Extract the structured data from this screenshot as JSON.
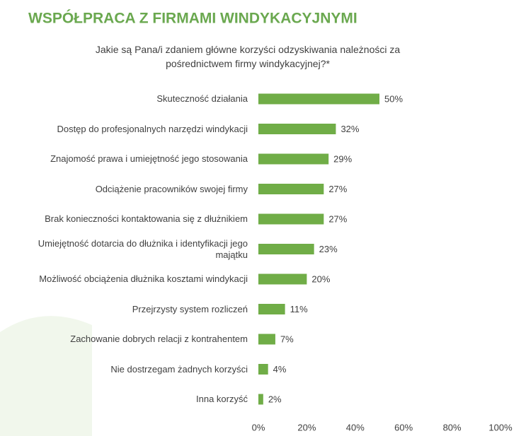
{
  "chart_data": {
    "type": "bar",
    "orientation": "horizontal",
    "title": "WSPÓŁPRACA Z FIRMAMI WINDYKACYJNYMI",
    "subtitle": "Jakie są Pana/i zdaniem główne korzyści odzyskiwania należności za pośrednictwem firmy windykacyjnej?*",
    "categories": [
      "Skuteczność działania",
      "Dostęp do profesjonalnych narzędzi windykacji",
      "Znajomość prawa i umiejętność jego stosowania",
      "Odciążenie pracowników swojej firmy",
      "Brak konieczności kontaktowania się z dłużnikiem",
      "Umiejętność dotarcia do dłużnika i identyfikacji jego majątku",
      "Możliwość obciążenia dłużnika kosztami windykacji",
      "Przejrzysty system rozliczeń",
      "Zachowanie dobrych relacji z kontrahentem",
      "Nie dostrzegam żadnych korzyści",
      "Inna korzyść"
    ],
    "values": [
      50,
      32,
      29,
      27,
      27,
      23,
      20,
      11,
      7,
      4,
      2
    ],
    "value_labels": [
      "50%",
      "32%",
      "29%",
      "27%",
      "27%",
      "23%",
      "20%",
      "11%",
      "7%",
      "4%",
      "2%"
    ],
    "color": "#70ad47",
    "xlim": [
      0,
      100
    ],
    "xticks": [
      {
        "value": 0,
        "label": "0%"
      },
      {
        "value": 20,
        "label": "20%"
      },
      {
        "value": 40,
        "label": "40%"
      },
      {
        "value": 60,
        "label": "60%"
      },
      {
        "value": 80,
        "label": "80%"
      },
      {
        "value": 100,
        "label": "100%"
      }
    ]
  }
}
